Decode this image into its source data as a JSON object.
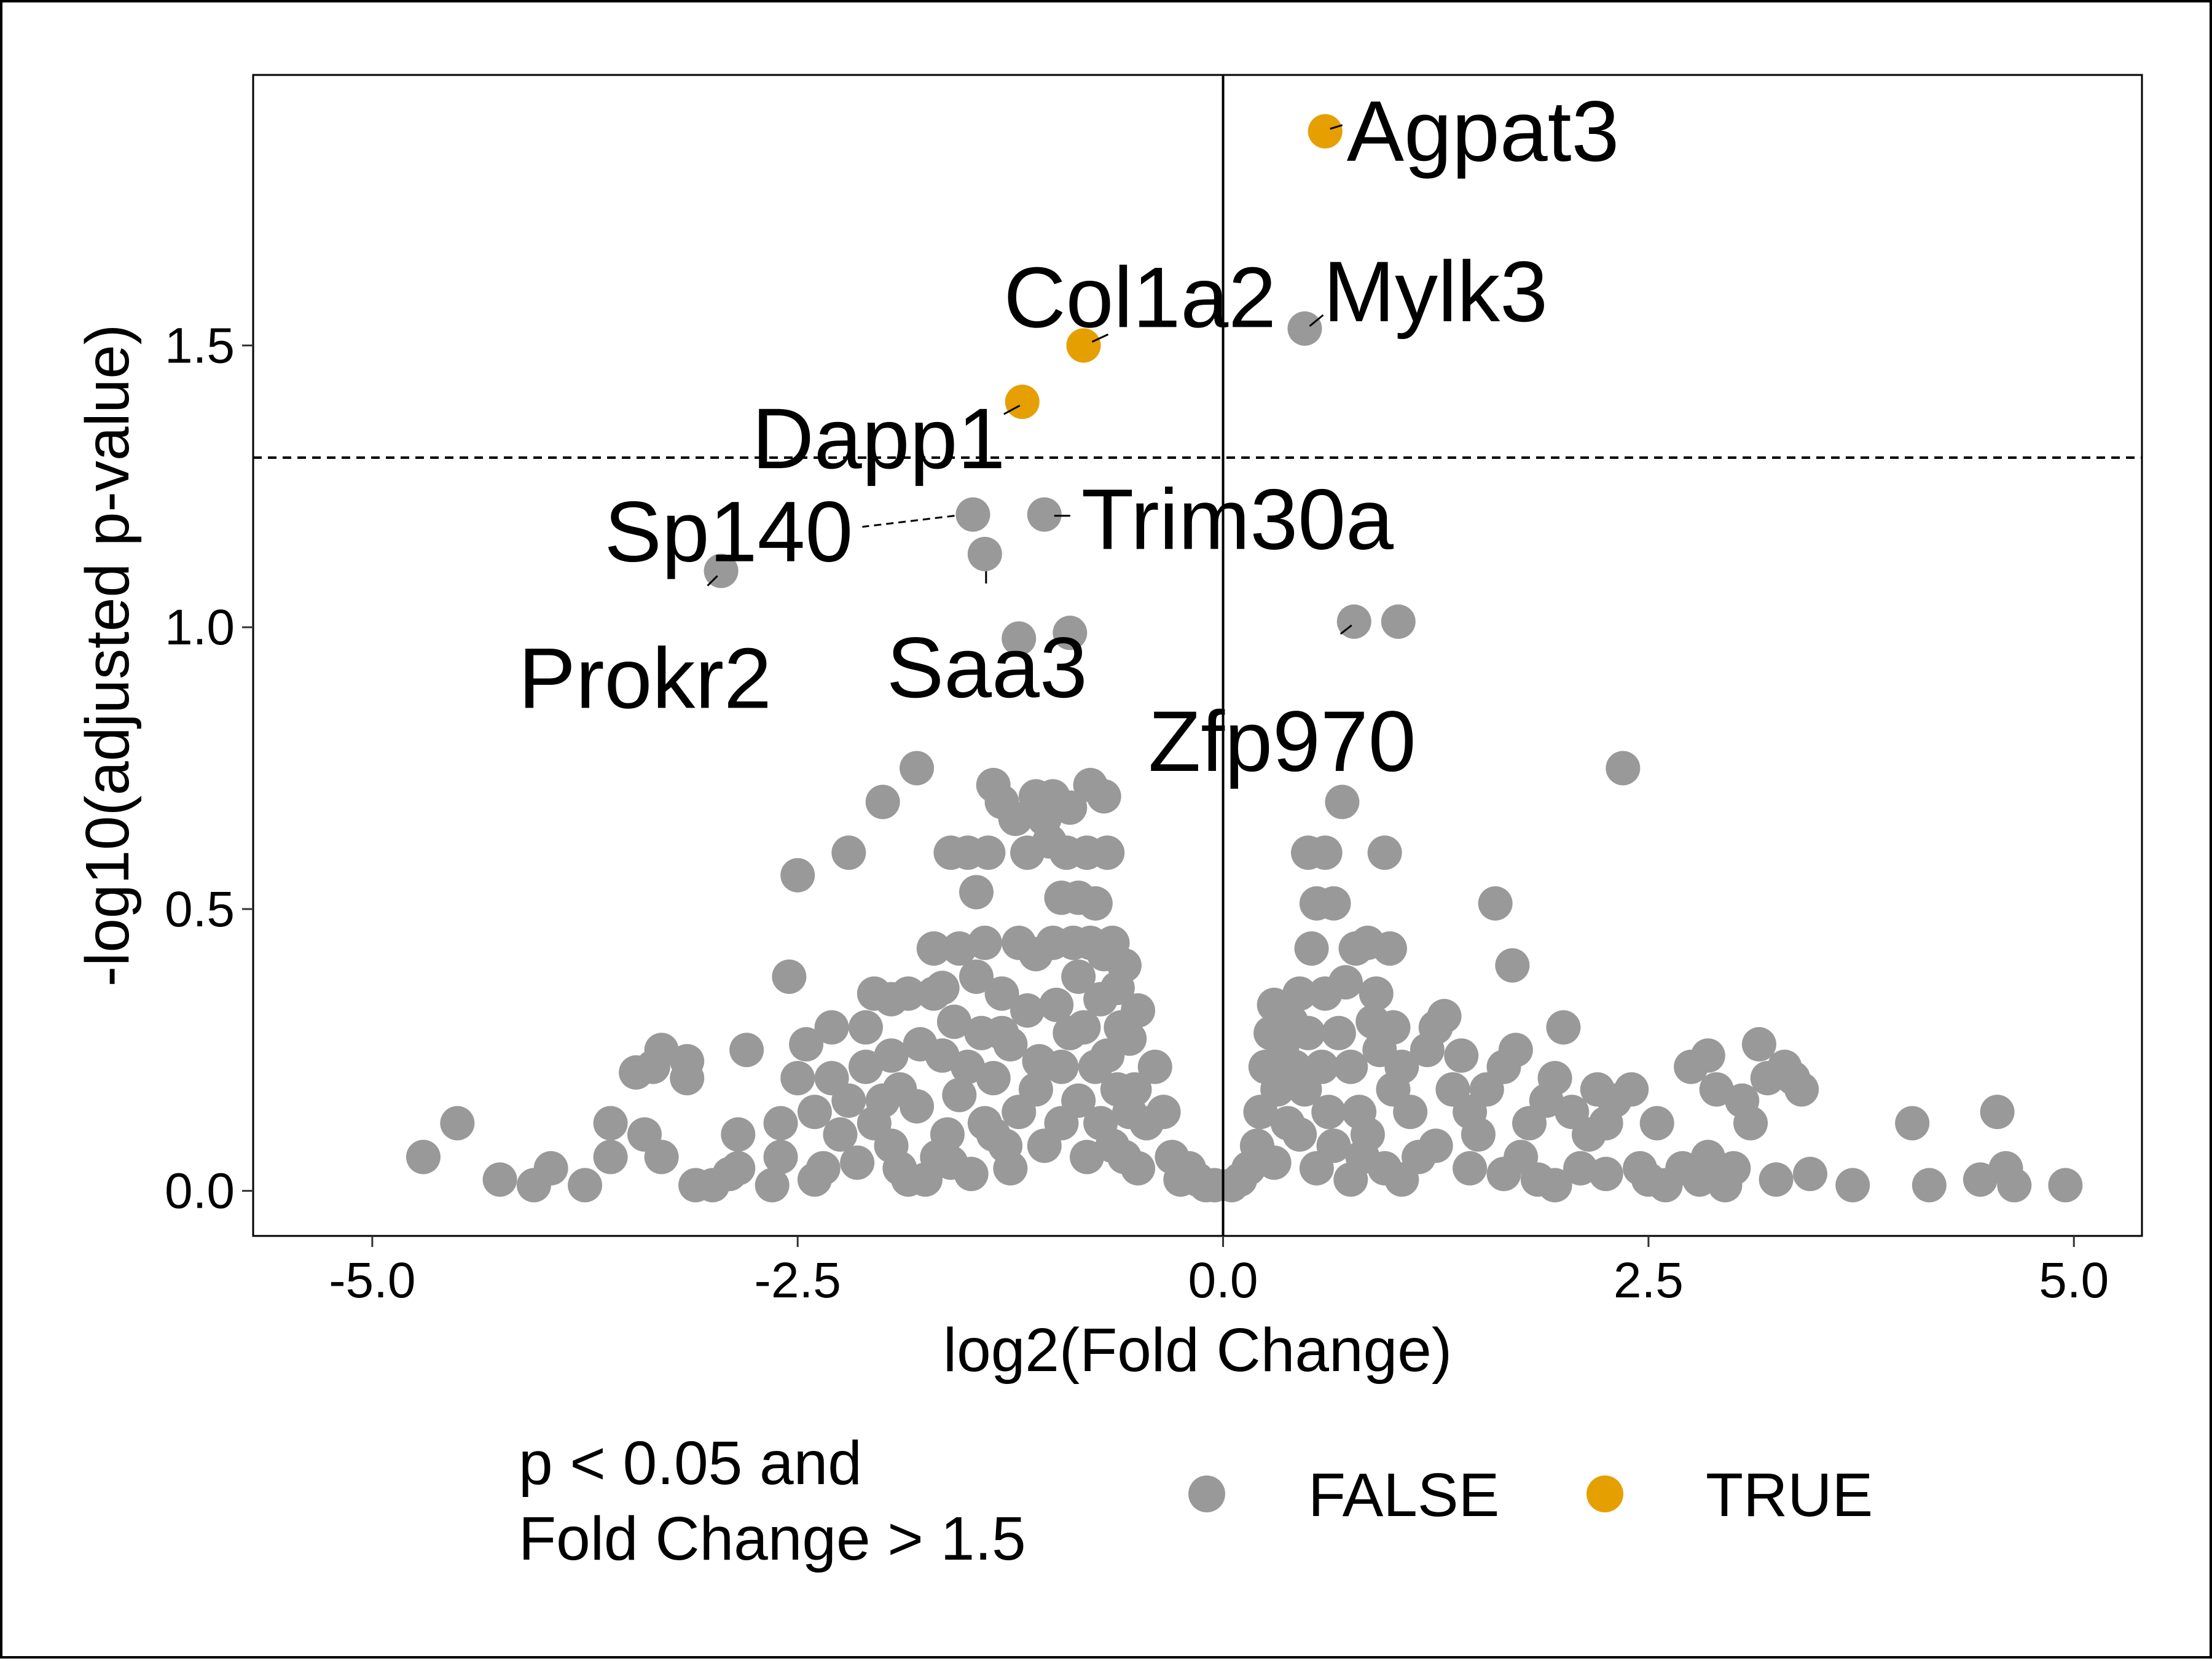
{
  "chart_data": {
    "type": "scatter",
    "xlabel": "log2(Fold Change)",
    "ylabel": "-log10(adjusted p-value)",
    "xlim": [
      -5.7,
      5.4
    ],
    "ylim": [
      -0.08,
      1.98
    ],
    "x_ticks": [
      {
        "value": -5.0,
        "label": "-5.0"
      },
      {
        "value": -2.5,
        "label": "-2.5"
      },
      {
        "value": 0.0,
        "label": "0.0"
      },
      {
        "value": 2.5,
        "label": "2.5"
      },
      {
        "value": 5.0,
        "label": "5.0"
      }
    ],
    "y_ticks": [
      {
        "value": 0.0,
        "label": "0.0"
      },
      {
        "value": 0.5,
        "label": "0.5"
      },
      {
        "value": 1.0,
        "label": "1.0"
      },
      {
        "value": 1.5,
        "label": "1.5"
      }
    ],
    "grid": false,
    "threshold_line_y": 1.301,
    "zero_line_x": 0.0,
    "colors": {
      "FALSE": "#999999",
      "TRUE": "#E69F00"
    },
    "legend": {
      "position": "bottom",
      "title_lines": [
        "p < 0.05 and",
        "Fold Change > 1.5"
      ],
      "entries": [
        {
          "key": "FALSE",
          "label": "FALSE",
          "color": "#999999"
        },
        {
          "key": "TRUE",
          "label": "TRUE",
          "color": "#E69F00"
        }
      ]
    },
    "labeled_points": [
      {
        "gene": "Agpat3",
        "x": 0.6,
        "y": 1.88,
        "significant": true
      },
      {
        "gene": "Col1a2",
        "x": -0.82,
        "y": 1.5,
        "significant": true
      },
      {
        "gene": "Dapp1",
        "x": -1.18,
        "y": 1.4,
        "significant": true
      },
      {
        "gene": "Mylk3",
        "x": 0.48,
        "y": 1.53,
        "significant": false
      },
      {
        "gene": "Sp140",
        "x": -1.47,
        "y": 1.2,
        "significant": false
      },
      {
        "gene": "Trim30a",
        "x": -1.05,
        "y": 1.2,
        "significant": false
      },
      {
        "gene": "Saa3",
        "x": -1.4,
        "y": 1.13,
        "significant": false
      },
      {
        "gene": "Prokr2",
        "x": -2.95,
        "y": 1.1,
        "significant": false
      },
      {
        "gene": "Zfp970",
        "x": 0.77,
        "y": 1.01,
        "significant": false
      }
    ],
    "points": [
      [
        -0.9,
        0.99
      ],
      [
        -1.2,
        0.98
      ],
      [
        1.03,
        1.01
      ],
      [
        -4.7,
        0.06
      ],
      [
        -4.5,
        0.12
      ],
      [
        -4.25,
        0.02
      ],
      [
        -4.05,
        0.01
      ],
      [
        -3.95,
        0.04
      ],
      [
        -3.75,
        0.01
      ],
      [
        -3.6,
        0.06
      ],
      [
        -3.6,
        0.12
      ],
      [
        -3.4,
        0.1
      ],
      [
        -3.45,
        0.21
      ],
      [
        -3.35,
        0.22
      ],
      [
        -3.3,
        0.25
      ],
      [
        -3.15,
        0.2
      ],
      [
        -3.15,
        0.23
      ],
      [
        -3.3,
        0.06
      ],
      [
        -3.1,
        0.01
      ],
      [
        -3.0,
        0.01
      ],
      [
        -2.9,
        0.03
      ],
      [
        -2.85,
        0.1
      ],
      [
        -2.85,
        0.04
      ],
      [
        -2.8,
        0.25
      ],
      [
        -2.65,
        0.01
      ],
      [
        -2.6,
        0.12
      ],
      [
        -2.6,
        0.06
      ],
      [
        -2.55,
        0.38
      ],
      [
        -2.5,
        0.56
      ],
      [
        -2.5,
        0.2
      ],
      [
        -2.45,
        0.26
      ],
      [
        -2.4,
        0.14
      ],
      [
        -2.4,
        0.02
      ],
      [
        -2.35,
        0.04
      ],
      [
        -2.3,
        0.29
      ],
      [
        -2.3,
        0.2
      ],
      [
        -2.25,
        0.1
      ],
      [
        -2.2,
        0.6
      ],
      [
        -2.2,
        0.16
      ],
      [
        -2.15,
        0.05
      ],
      [
        -2.1,
        0.29
      ],
      [
        -2.1,
        0.22
      ],
      [
        -2.05,
        0.35
      ],
      [
        -2.05,
        0.12
      ],
      [
        -2.0,
        0.69
      ],
      [
        -1.95,
        0.34
      ],
      [
        -1.95,
        0.24
      ],
      [
        -1.95,
        0.08
      ],
      [
        -1.9,
        0.18
      ],
      [
        -1.85,
        0.35
      ],
      [
        -1.85,
        0.02
      ],
      [
        -1.8,
        0.75
      ],
      [
        -1.8,
        0.15
      ],
      [
        -1.78,
        0.26
      ],
      [
        -1.7,
        0.43
      ],
      [
        -1.7,
        0.35
      ],
      [
        -1.68,
        0.06
      ],
      [
        -1.65,
        0.24
      ],
      [
        -1.62,
        0.1
      ],
      [
        -1.6,
        0.6
      ],
      [
        -1.58,
        0.3
      ],
      [
        -1.55,
        0.43
      ],
      [
        -1.55,
        0.17
      ],
      [
        -1.5,
        0.6
      ],
      [
        -1.48,
        0.03
      ],
      [
        -1.45,
        0.53
      ],
      [
        -1.45,
        0.38
      ],
      [
        -1.42,
        0.28
      ],
      [
        -1.4,
        0.44
      ],
      [
        -1.38,
        0.6
      ],
      [
        -1.35,
        0.72
      ],
      [
        -1.35,
        0.2
      ],
      [
        -1.3,
        0.69
      ],
      [
        -1.3,
        0.35
      ],
      [
        -1.28,
        0.08
      ],
      [
        -1.25,
        0.26
      ],
      [
        -1.22,
        0.66
      ],
      [
        -1.2,
        0.44
      ],
      [
        -1.2,
        0.14
      ],
      [
        -1.15,
        0.32
      ],
      [
        -1.15,
        0.6
      ],
      [
        -1.1,
        0.7
      ],
      [
        -1.1,
        0.42
      ],
      [
        -1.08,
        0.23
      ],
      [
        -1.05,
        0.66
      ],
      [
        -1.02,
        0.62
      ],
      [
        -1.0,
        0.7
      ],
      [
        -1.0,
        0.44
      ],
      [
        -0.98,
        0.33
      ],
      [
        -0.95,
        0.52
      ],
      [
        -0.95,
        0.22
      ],
      [
        -0.92,
        0.6
      ],
      [
        -0.9,
        0.68
      ],
      [
        -0.88,
        0.44
      ],
      [
        -0.85,
        0.52
      ],
      [
        -0.85,
        0.38
      ],
      [
        -0.82,
        0.29
      ],
      [
        -0.8,
        0.6
      ],
      [
        -0.78,
        0.72
      ],
      [
        -0.78,
        0.44
      ],
      [
        -0.75,
        0.51
      ],
      [
        -0.72,
        0.34
      ],
      [
        -0.7,
        0.7
      ],
      [
        -0.7,
        0.42
      ],
      [
        -0.68,
        0.6
      ],
      [
        -0.65,
        0.44
      ],
      [
        -0.62,
        0.36
      ],
      [
        -0.6,
        0.29
      ],
      [
        -0.58,
        0.4
      ],
      [
        -0.55,
        0.27
      ],
      [
        -0.52,
        0.18
      ],
      [
        -0.5,
        0.32
      ],
      [
        -0.45,
        0.12
      ],
      [
        -0.4,
        0.22
      ],
      [
        -0.35,
        0.14
      ],
      [
        -0.3,
        0.06
      ],
      [
        -0.25,
        0.02
      ],
      [
        -0.2,
        0.04
      ],
      [
        -0.15,
        0.02
      ],
      [
        -0.1,
        0.01
      ],
      [
        -0.05,
        0.01
      ],
      [
        -1.6,
        0.05
      ],
      [
        -1.4,
        0.12
      ],
      [
        -1.3,
        0.28
      ],
      [
        -1.25,
        0.04
      ],
      [
        -1.1,
        0.18
      ],
      [
        -1.05,
        0.08
      ],
      [
        -0.95,
        0.12
      ],
      [
        -0.9,
        0.28
      ],
      [
        -0.85,
        0.16
      ],
      [
        -0.8,
        0.06
      ],
      [
        -0.75,
        0.22
      ],
      [
        -0.72,
        0.12
      ],
      [
        -0.68,
        0.24
      ],
      [
        -0.65,
        0.08
      ],
      [
        -0.62,
        0.18
      ],
      [
        -0.58,
        0.06
      ],
      [
        -0.55,
        0.14
      ],
      [
        -0.5,
        0.04
      ],
      [
        -1.9,
        0.04
      ],
      [
        -1.75,
        0.02
      ],
      [
        -2.0,
        0.16
      ],
      [
        -1.65,
        0.36
      ],
      [
        -1.5,
        0.22
      ],
      [
        -1.35,
        0.1
      ],
      [
        0.05,
        0.01
      ],
      [
        0.1,
        0.02
      ],
      [
        0.15,
        0.04
      ],
      [
        0.2,
        0.08
      ],
      [
        0.22,
        0.14
      ],
      [
        0.25,
        0.22
      ],
      [
        0.28,
        0.28
      ],
      [
        0.3,
        0.33
      ],
      [
        0.32,
        0.18
      ],
      [
        0.35,
        0.26
      ],
      [
        0.38,
        0.12
      ],
      [
        0.4,
        0.3
      ],
      [
        0.42,
        0.22
      ],
      [
        0.45,
        0.35
      ],
      [
        0.48,
        0.18
      ],
      [
        0.5,
        0.6
      ],
      [
        0.5,
        0.28
      ],
      [
        0.52,
        0.43
      ],
      [
        0.55,
        0.51
      ],
      [
        0.58,
        0.22
      ],
      [
        0.6,
        0.6
      ],
      [
        0.6,
        0.35
      ],
      [
        0.62,
        0.14
      ],
      [
        0.65,
        0.51
      ],
      [
        0.68,
        0.28
      ],
      [
        0.7,
        0.69
      ],
      [
        0.72,
        0.37
      ],
      [
        0.75,
        0.22
      ],
      [
        0.78,
        0.43
      ],
      [
        0.8,
        0.14
      ],
      [
        0.82,
        0.06
      ],
      [
        0.85,
        0.44
      ],
      [
        0.88,
        0.3
      ],
      [
        0.9,
        0.35
      ],
      [
        0.92,
        0.25
      ],
      [
        0.95,
        0.6
      ],
      [
        0.98,
        0.43
      ],
      [
        1.0,
        0.18
      ],
      [
        1.0,
        0.29
      ],
      [
        1.05,
        0.22
      ],
      [
        1.1,
        0.14
      ],
      [
        1.15,
        0.06
      ],
      [
        1.2,
        0.25
      ],
      [
        1.25,
        0.29
      ],
      [
        1.3,
        0.31
      ],
      [
        1.35,
        0.18
      ],
      [
        1.4,
        0.24
      ],
      [
        1.45,
        0.14
      ],
      [
        1.5,
        0.1
      ],
      [
        1.55,
        0.18
      ],
      [
        1.6,
        0.51
      ],
      [
        1.65,
        0.22
      ],
      [
        1.7,
        0.4
      ],
      [
        1.72,
        0.25
      ],
      [
        1.75,
        0.06
      ],
      [
        1.8,
        0.12
      ],
      [
        1.85,
        0.02
      ],
      [
        1.9,
        0.16
      ],
      [
        1.95,
        0.2
      ],
      [
        2.0,
        0.29
      ],
      [
        2.05,
        0.14
      ],
      [
        2.1,
        0.04
      ],
      [
        2.15,
        0.1
      ],
      [
        2.2,
        0.18
      ],
      [
        2.25,
        0.12
      ],
      [
        2.3,
        0.16
      ],
      [
        2.35,
        0.75
      ],
      [
        2.4,
        0.18
      ],
      [
        2.45,
        0.04
      ],
      [
        2.55,
        0.12
      ],
      [
        2.6,
        0.01
      ],
      [
        2.7,
        0.04
      ],
      [
        2.75,
        0.22
      ],
      [
        2.8,
        0.02
      ],
      [
        2.85,
        0.24
      ],
      [
        2.9,
        0.18
      ],
      [
        2.95,
        0.01
      ],
      [
        3.05,
        0.16
      ],
      [
        3.1,
        0.12
      ],
      [
        3.15,
        0.26
      ],
      [
        3.2,
        0.2
      ],
      [
        3.25,
        0.02
      ],
      [
        3.3,
        0.22
      ],
      [
        3.35,
        0.2
      ],
      [
        3.4,
        0.18
      ],
      [
        3.45,
        0.03
      ],
      [
        3.7,
        0.01
      ],
      [
        4.05,
        0.12
      ],
      [
        4.15,
        0.01
      ],
      [
        4.45,
        0.02
      ],
      [
        4.55,
        0.14
      ],
      [
        4.6,
        0.04
      ],
      [
        4.65,
        0.01
      ],
      [
        4.95,
        0.01
      ],
      [
        0.3,
        0.05
      ],
      [
        0.45,
        0.1
      ],
      [
        0.55,
        0.04
      ],
      [
        0.65,
        0.08
      ],
      [
        0.75,
        0.02
      ],
      [
        0.85,
        0.1
      ],
      [
        0.95,
        0.04
      ],
      [
        1.05,
        0.02
      ],
      [
        1.25,
        0.08
      ],
      [
        1.45,
        0.04
      ],
      [
        1.65,
        0.03
      ],
      [
        1.95,
        0.01
      ],
      [
        2.25,
        0.03
      ],
      [
        2.5,
        0.02
      ],
      [
        2.85,
        0.06
      ],
      [
        3.0,
        0.04
      ]
    ]
  }
}
